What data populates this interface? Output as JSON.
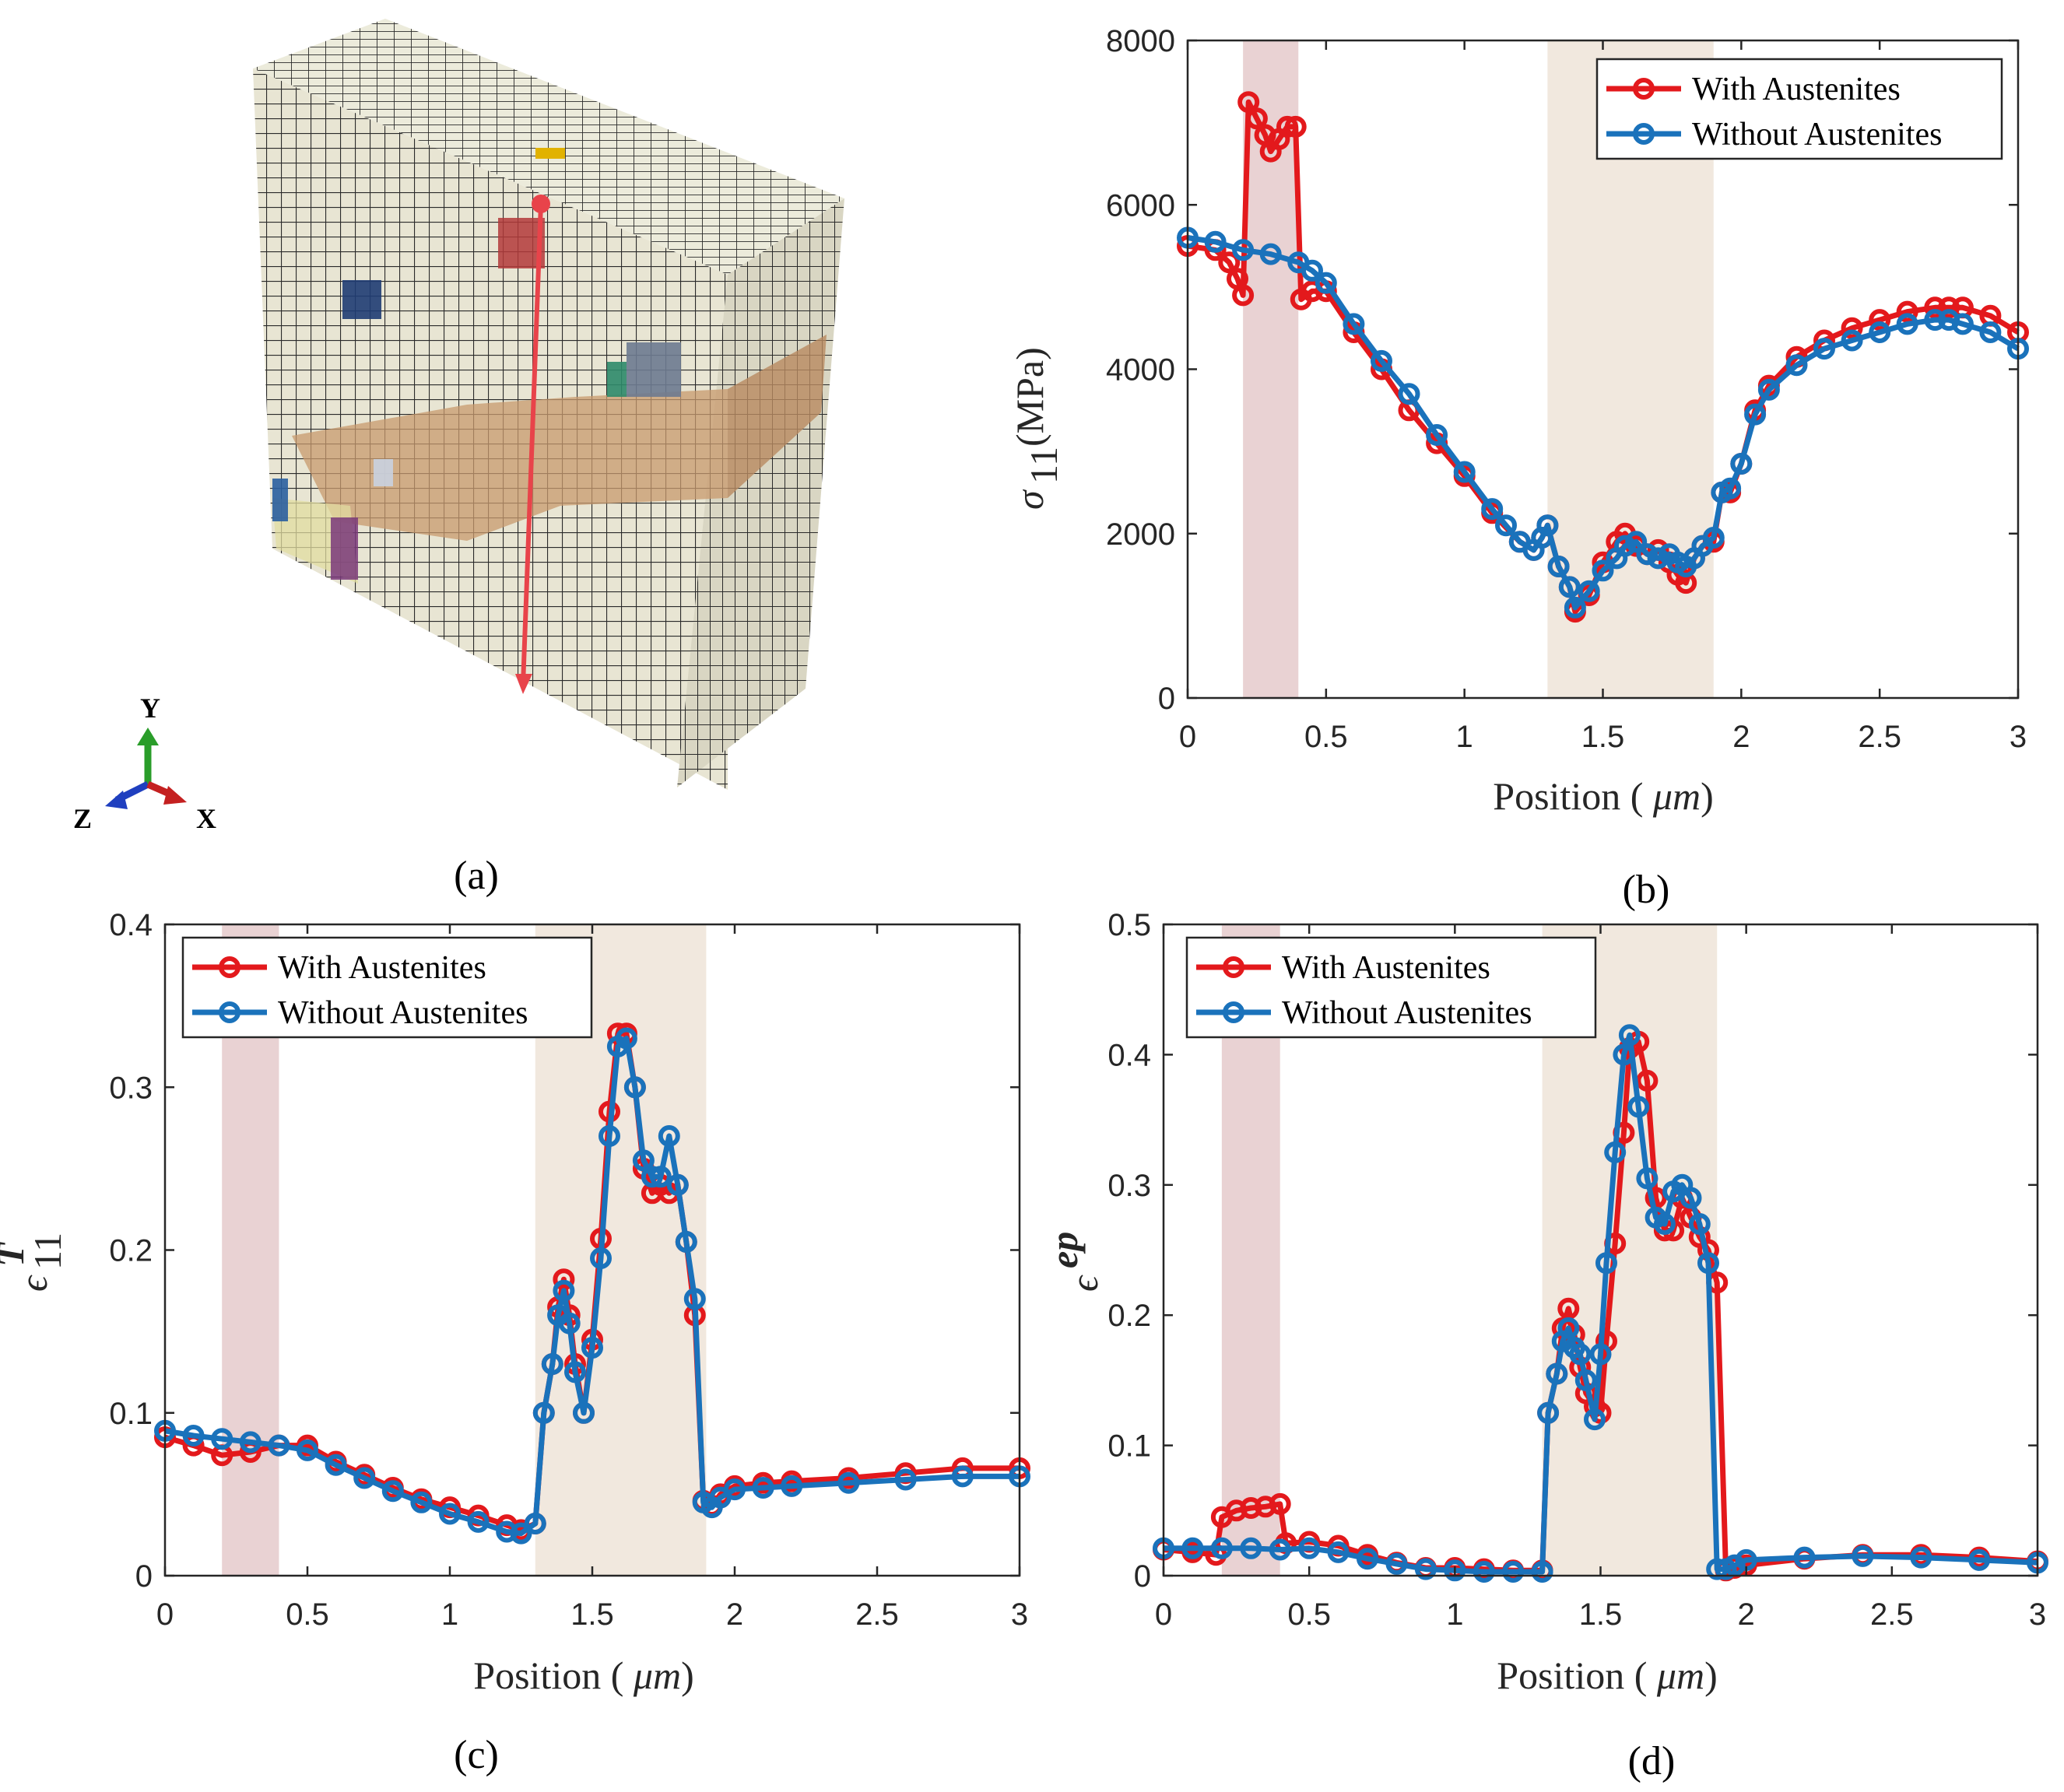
{
  "captions": {
    "a": "(a)",
    "b": "(b)",
    "c": "(c)",
    "d": "(d)"
  },
  "triad": {
    "y": "Y",
    "z": "Z",
    "x": "X"
  },
  "colors": {
    "with": "#e3191c",
    "without": "#1a72bb",
    "band1": "#e9d2d3",
    "band2": "#f1e8de"
  },
  "legend": {
    "with": "With Austenites",
    "without": "Without Austenites"
  },
  "chart_data": [
    {
      "id": "b",
      "type": "line",
      "xlabel": "Position ( μm)",
      "ylabel": "σ11 (MPa)",
      "xlim": [
        0,
        3
      ],
      "ylim": [
        0,
        8000
      ],
      "xticks": [
        0,
        0.5,
        1,
        1.5,
        2,
        2.5,
        3
      ],
      "xtick_labels": [
        "0",
        "0.5",
        "1",
        "1.5",
        "2",
        "2.5",
        "3"
      ],
      "yticks": [
        0,
        2000,
        4000,
        6000,
        8000
      ],
      "ytick_labels": [
        "0",
        "2000",
        "4000",
        "6000",
        "8000"
      ],
      "bands": [
        [
          0.2,
          0.4
        ],
        [
          1.3,
          1.9
        ]
      ],
      "legend_position": "top-right",
      "series": [
        {
          "name": "With Austenites",
          "x": [
            0,
            0.1,
            0.15,
            0.18,
            0.2,
            0.22,
            0.25,
            0.28,
            0.3,
            0.33,
            0.36,
            0.39,
            0.41,
            0.45,
            0.5,
            0.6,
            0.7,
            0.8,
            0.9,
            1.0,
            1.1,
            1.2,
            1.25,
            1.28,
            1.3,
            1.34,
            1.38,
            1.4,
            1.45,
            1.5,
            1.55,
            1.58,
            1.62,
            1.66,
            1.7,
            1.74,
            1.77,
            1.8,
            1.83,
            1.86,
            1.9,
            1.93,
            1.96,
            2.0,
            2.05,
            2.1,
            2.2,
            2.3,
            2.4,
            2.5,
            2.6,
            2.7,
            2.75,
            2.8,
            2.9,
            3.0
          ],
          "y": [
            5500,
            5450,
            5300,
            5100,
            4900,
            7250,
            7050,
            6850,
            6650,
            6800,
            6950,
            6950,
            4850,
            4950,
            4950,
            4450,
            4000,
            3500,
            3100,
            2700,
            2250,
            1900,
            1800,
            1950,
            2100,
            1600,
            1350,
            1050,
            1250,
            1650,
            1900,
            2000,
            1850,
            1750,
            1800,
            1650,
            1500,
            1400,
            1700,
            1850,
            1900,
            2500,
            2500,
            2850,
            3500,
            3800,
            4150,
            4350,
            4500,
            4600,
            4700,
            4750,
            4750,
            4750,
            4650,
            4450
          ]
        },
        {
          "name": "Without Austenites",
          "x": [
            0,
            0.1,
            0.2,
            0.3,
            0.4,
            0.45,
            0.5,
            0.6,
            0.7,
            0.8,
            0.9,
            1.0,
            1.1,
            1.15,
            1.2,
            1.25,
            1.28,
            1.3,
            1.34,
            1.38,
            1.4,
            1.45,
            1.5,
            1.55,
            1.58,
            1.62,
            1.66,
            1.7,
            1.74,
            1.77,
            1.8,
            1.83,
            1.86,
            1.9,
            1.93,
            1.96,
            2.0,
            2.05,
            2.1,
            2.2,
            2.3,
            2.4,
            2.5,
            2.6,
            2.7,
            2.75,
            2.8,
            2.9,
            3.0
          ],
          "y": [
            5600,
            5550,
            5450,
            5400,
            5300,
            5200,
            5050,
            4550,
            4100,
            3700,
            3200,
            2750,
            2300,
            2100,
            1900,
            1800,
            1950,
            2100,
            1600,
            1350,
            1100,
            1300,
            1550,
            1700,
            1850,
            1900,
            1750,
            1700,
            1750,
            1650,
            1600,
            1700,
            1850,
            1950,
            2500,
            2550,
            2850,
            3450,
            3750,
            4050,
            4250,
            4350,
            4450,
            4550,
            4600,
            4600,
            4550,
            4450,
            4250
          ]
        }
      ]
    },
    {
      "id": "c",
      "type": "line",
      "xlabel": "Position ( μm)",
      "ylabel": "ϵ11T",
      "xlim": [
        0,
        3
      ],
      "ylim": [
        0,
        0.4
      ],
      "xticks": [
        0,
        0.5,
        1,
        1.5,
        2,
        2.5,
        3
      ],
      "xtick_labels": [
        "0",
        "0.5",
        "1",
        "1.5",
        "2",
        "2.5",
        "3"
      ],
      "yticks": [
        0,
        0.1,
        0.2,
        0.3,
        0.4
      ],
      "ytick_labels": [
        "0",
        "0.1",
        "0.2",
        "0.3",
        "0.4"
      ],
      "bands": [
        [
          0.2,
          0.4
        ],
        [
          1.3,
          1.9
        ]
      ],
      "legend_position": "top-left",
      "series": [
        {
          "name": "With Austenites",
          "x": [
            0,
            0.1,
            0.2,
            0.3,
            0.4,
            0.5,
            0.6,
            0.7,
            0.8,
            0.9,
            1.0,
            1.1,
            1.2,
            1.25,
            1.3,
            1.33,
            1.36,
            1.38,
            1.4,
            1.42,
            1.44,
            1.47,
            1.5,
            1.53,
            1.56,
            1.59,
            1.62,
            1.65,
            1.68,
            1.71,
            1.74,
            1.77,
            1.8,
            1.83,
            1.86,
            1.89,
            1.92,
            1.95,
            2.0,
            2.1,
            2.2,
            2.4,
            2.6,
            2.8,
            3.0
          ],
          "y": [
            0.085,
            0.08,
            0.074,
            0.076,
            0.08,
            0.08,
            0.07,
            0.062,
            0.054,
            0.047,
            0.042,
            0.037,
            0.031,
            0.028,
            0.032,
            0.1,
            0.13,
            0.165,
            0.182,
            0.16,
            0.13,
            0.1,
            0.145,
            0.207,
            0.285,
            0.333,
            0.333,
            0.3,
            0.25,
            0.235,
            0.24,
            0.235,
            0.24,
            0.205,
            0.16,
            0.046,
            0.043,
            0.05,
            0.055,
            0.057,
            0.058,
            0.06,
            0.063,
            0.066,
            0.066
          ]
        },
        {
          "name": "Without Austenites",
          "x": [
            0,
            0.1,
            0.2,
            0.3,
            0.4,
            0.5,
            0.6,
            0.7,
            0.8,
            0.9,
            1.0,
            1.1,
            1.2,
            1.25,
            1.3,
            1.33,
            1.36,
            1.38,
            1.4,
            1.42,
            1.44,
            1.47,
            1.5,
            1.53,
            1.56,
            1.59,
            1.62,
            1.65,
            1.68,
            1.71,
            1.74,
            1.77,
            1.8,
            1.83,
            1.86,
            1.89,
            1.92,
            1.95,
            2.0,
            2.1,
            2.2,
            2.4,
            2.6,
            2.8,
            3.0
          ],
          "y": [
            0.089,
            0.086,
            0.084,
            0.082,
            0.08,
            0.077,
            0.068,
            0.06,
            0.052,
            0.045,
            0.038,
            0.033,
            0.027,
            0.026,
            0.032,
            0.1,
            0.13,
            0.16,
            0.175,
            0.155,
            0.125,
            0.1,
            0.14,
            0.195,
            0.27,
            0.325,
            0.33,
            0.3,
            0.255,
            0.245,
            0.245,
            0.27,
            0.24,
            0.205,
            0.17,
            0.045,
            0.042,
            0.048,
            0.053,
            0.054,
            0.055,
            0.057,
            0.059,
            0.061,
            0.061
          ]
        }
      ]
    },
    {
      "id": "d",
      "type": "line",
      "xlabel": "Position ( μm)",
      "ylabel": "ϵep",
      "xlim": [
        0,
        3
      ],
      "ylim": [
        0,
        0.5
      ],
      "xticks": [
        0,
        0.5,
        1,
        1.5,
        2,
        2.5,
        3
      ],
      "xtick_labels": [
        "0",
        "0.5",
        "1",
        "1.5",
        "2",
        "2.5",
        "3"
      ],
      "yticks": [
        0,
        0.1,
        0.2,
        0.3,
        0.4,
        0.5
      ],
      "ytick_labels": [
        "0",
        "0.1",
        "0.2",
        "0.3",
        "0.4",
        "0.5"
      ],
      "bands": [
        [
          0.2,
          0.4
        ],
        [
          1.3,
          1.9
        ]
      ],
      "legend_position": "top-left",
      "series": [
        {
          "name": "With Austenites",
          "x": [
            0,
            0.1,
            0.18,
            0.2,
            0.25,
            0.3,
            0.35,
            0.4,
            0.42,
            0.5,
            0.6,
            0.7,
            0.8,
            0.9,
            1.0,
            1.1,
            1.2,
            1.3,
            1.32,
            1.35,
            1.37,
            1.39,
            1.41,
            1.43,
            1.45,
            1.48,
            1.5,
            1.52,
            1.55,
            1.58,
            1.6,
            1.63,
            1.66,
            1.69,
            1.72,
            1.75,
            1.78,
            1.81,
            1.84,
            1.87,
            1.9,
            1.93,
            1.96,
            2.0,
            2.2,
            2.4,
            2.6,
            2.8,
            3.0
          ],
          "y": [
            0.02,
            0.018,
            0.016,
            0.045,
            0.05,
            0.052,
            0.053,
            0.055,
            0.025,
            0.026,
            0.023,
            0.016,
            0.01,
            0.006,
            0.006,
            0.005,
            0.004,
            0.004,
            0.125,
            0.155,
            0.19,
            0.205,
            0.185,
            0.16,
            0.14,
            0.13,
            0.125,
            0.18,
            0.255,
            0.34,
            0.405,
            0.41,
            0.38,
            0.29,
            0.265,
            0.265,
            0.29,
            0.275,
            0.26,
            0.25,
            0.225,
            0.004,
            0.006,
            0.008,
            0.013,
            0.016,
            0.016,
            0.014,
            0.011
          ]
        },
        {
          "name": "Without Austenites",
          "x": [
            0,
            0.1,
            0.2,
            0.3,
            0.4,
            0.5,
            0.6,
            0.7,
            0.8,
            0.9,
            1.0,
            1.1,
            1.2,
            1.3,
            1.32,
            1.35,
            1.37,
            1.39,
            1.41,
            1.43,
            1.45,
            1.48,
            1.5,
            1.52,
            1.55,
            1.58,
            1.6,
            1.63,
            1.66,
            1.69,
            1.72,
            1.75,
            1.78,
            1.81,
            1.84,
            1.87,
            1.9,
            1.93,
            1.96,
            2.0,
            2.2,
            2.4,
            2.6,
            2.8,
            3.0
          ],
          "y": [
            0.021,
            0.021,
            0.021,
            0.021,
            0.02,
            0.021,
            0.018,
            0.013,
            0.009,
            0.005,
            0.004,
            0.003,
            0.003,
            0.003,
            0.125,
            0.155,
            0.18,
            0.19,
            0.175,
            0.17,
            0.15,
            0.12,
            0.17,
            0.24,
            0.325,
            0.4,
            0.415,
            0.36,
            0.305,
            0.275,
            0.27,
            0.295,
            0.3,
            0.29,
            0.27,
            0.24,
            0.005,
            0.005,
            0.008,
            0.012,
            0.014,
            0.015,
            0.014,
            0.012,
            0.01
          ]
        }
      ]
    }
  ]
}
